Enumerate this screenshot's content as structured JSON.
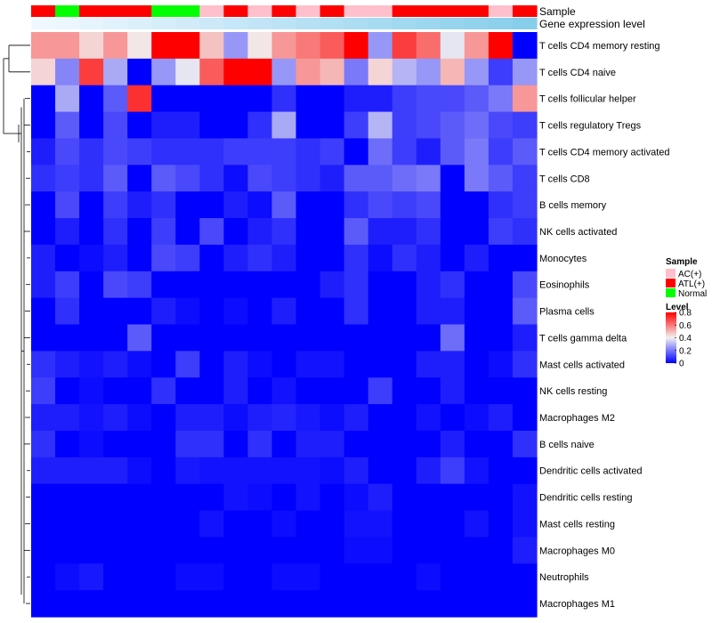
{
  "chart_data": {
    "type": "heatmap",
    "annotation_rows": [
      "Sample",
      "Gene expression level"
    ],
    "sample_groups": [
      "ATL(+)",
      "Normal",
      "ATL(+)",
      "ATL(+)",
      "ATL(+)",
      "Normal",
      "Normal",
      "AC(+)",
      "ATL(+)",
      "AC(+)",
      "ATL(+)",
      "AC(+)",
      "ATL(+)",
      "AC(+)",
      "AC(+)",
      "ATL(+)",
      "ATL(+)",
      "ATL(+)",
      "ATL(+)",
      "AC(+)",
      "ATL(+)"
    ],
    "gene_expression_level": [
      0.0,
      0.05,
      0.1,
      0.15,
      0.2,
      0.25,
      0.3,
      0.35,
      0.4,
      0.45,
      0.5,
      0.55,
      0.6,
      0.65,
      0.7,
      0.75,
      0.8,
      0.85,
      0.9,
      0.95,
      1.0
    ],
    "rows": [
      "T cells CD4 memory resting",
      "T cells CD4 naive",
      "T cells follicular helper",
      "T cells regulatory  Tregs",
      "T cells CD4 memory activated",
      "T cells CD8",
      "B cells memory",
      "NK cells activated",
      "Monocytes",
      "Eosinophils",
      "Plasma cells",
      "T cells gamma delta",
      "Mast cells activated",
      "NK cells resting",
      "Macrophages M2",
      "B cells naive",
      "Dendritic cells activated",
      "Dendritic cells resting",
      "Mast cells resting",
      "Macrophages M0",
      "Neutrophils",
      "Macrophages M1"
    ],
    "values": [
      [
        0.55,
        0.55,
        0.45,
        0.55,
        0.42,
        0.8,
        0.8,
        0.48,
        0.25,
        0.42,
        0.55,
        0.6,
        0.65,
        0.8,
        0.25,
        0.7,
        0.62,
        0.38,
        0.55,
        0.8,
        0.0
      ],
      [
        0.45,
        0.22,
        0.7,
        0.28,
        0.0,
        0.25,
        0.38,
        0.65,
        0.8,
        0.8,
        0.25,
        0.55,
        0.5,
        0.2,
        0.45,
        0.3,
        0.25,
        0.5,
        0.25,
        0.1,
        0.25
      ],
      [
        0.0,
        0.28,
        0.0,
        0.15,
        0.72,
        0.0,
        0.0,
        0.0,
        0.0,
        0.0,
        0.08,
        0.0,
        0.0,
        0.05,
        0.05,
        0.1,
        0.12,
        0.12,
        0.15,
        0.2,
        0.55
      ],
      [
        0.0,
        0.15,
        0.0,
        0.12,
        0.0,
        0.05,
        0.05,
        0.0,
        0.0,
        0.08,
        0.28,
        0.0,
        0.0,
        0.1,
        0.3,
        0.1,
        0.12,
        0.15,
        0.18,
        0.12,
        0.1
      ],
      [
        0.05,
        0.12,
        0.08,
        0.12,
        0.1,
        0.08,
        0.08,
        0.08,
        0.1,
        0.1,
        0.1,
        0.08,
        0.1,
        0.0,
        0.18,
        0.1,
        0.05,
        0.15,
        0.2,
        0.1,
        0.15
      ],
      [
        0.08,
        0.1,
        0.08,
        0.15,
        0.0,
        0.15,
        0.12,
        0.08,
        0.02,
        0.12,
        0.1,
        0.08,
        0.05,
        0.15,
        0.15,
        0.18,
        0.2,
        0.0,
        0.2,
        0.15,
        0.1
      ],
      [
        0.0,
        0.12,
        0.0,
        0.1,
        0.05,
        0.08,
        0.0,
        0.0,
        0.05,
        0.02,
        0.15,
        0.0,
        0.0,
        0.08,
        0.12,
        0.1,
        0.12,
        0.0,
        0.0,
        0.08,
        0.1
      ],
      [
        0.0,
        0.05,
        0.0,
        0.08,
        0.0,
        0.1,
        0.0,
        0.12,
        0.0,
        0.05,
        0.08,
        0.0,
        0.0,
        0.15,
        0.05,
        0.05,
        0.08,
        0.0,
        0.0,
        0.1,
        0.08
      ],
      [
        0.05,
        0.0,
        0.02,
        0.05,
        0.0,
        0.12,
        0.1,
        0.0,
        0.05,
        0.08,
        0.05,
        0.0,
        0.0,
        0.08,
        0.02,
        0.08,
        0.05,
        0.0,
        0.05,
        0.0,
        0.0
      ],
      [
        0.05,
        0.1,
        0.0,
        0.12,
        0.1,
        0.0,
        0.0,
        0.0,
        0.0,
        0.0,
        0.0,
        0.0,
        0.05,
        0.08,
        0.0,
        0.0,
        0.05,
        0.08,
        0.0,
        0.0,
        0.12
      ],
      [
        0.0,
        0.08,
        0.0,
        0.0,
        0.0,
        0.05,
        0.02,
        0.0,
        0.02,
        0.0,
        0.05,
        0.0,
        0.0,
        0.08,
        0.0,
        0.0,
        0.05,
        0.05,
        0.0,
        0.0,
        0.15
      ],
      [
        0.0,
        0.0,
        0.0,
        0.0,
        0.15,
        0.0,
        0.0,
        0.0,
        0.0,
        0.0,
        0.0,
        0.0,
        0.0,
        0.0,
        0.0,
        0.0,
        0.0,
        0.18,
        0.0,
        0.0,
        0.05
      ],
      [
        0.08,
        0.05,
        0.03,
        0.05,
        0.02,
        0.0,
        0.1,
        0.0,
        0.05,
        0.02,
        0.0,
        0.03,
        0.03,
        0.0,
        0.0,
        0.0,
        0.05,
        0.05,
        0.0,
        0.02,
        0.08
      ],
      [
        0.1,
        0.0,
        0.02,
        0.0,
        0.0,
        0.08,
        0.0,
        0.0,
        0.05,
        0.0,
        0.03,
        0.0,
        0.0,
        0.0,
        0.1,
        0.0,
        0.0,
        0.05,
        0.0,
        0.0,
        0.0
      ],
      [
        0.05,
        0.05,
        0.03,
        0.05,
        0.02,
        0.0,
        0.05,
        0.05,
        0.02,
        0.05,
        0.06,
        0.04,
        0.02,
        0.05,
        0.0,
        0.0,
        0.03,
        0.0,
        0.02,
        0.05,
        0.0
      ],
      [
        0.08,
        0.0,
        0.02,
        0.0,
        0.0,
        0.0,
        0.08,
        0.08,
        0.0,
        0.08,
        0.0,
        0.05,
        0.05,
        0.0,
        0.0,
        0.0,
        0.0,
        0.05,
        0.0,
        0.0,
        0.08
      ],
      [
        0.05,
        0.05,
        0.05,
        0.05,
        0.02,
        0.0,
        0.04,
        0.03,
        0.03,
        0.03,
        0.03,
        0.03,
        0.02,
        0.05,
        0.0,
        0.0,
        0.05,
        0.1,
        0.03,
        0.0,
        0.0
      ],
      [
        0.0,
        0.0,
        0.0,
        0.0,
        0.0,
        0.0,
        0.0,
        0.0,
        0.03,
        0.02,
        0.0,
        0.03,
        0.0,
        0.02,
        0.05,
        0.0,
        0.0,
        0.0,
        0.0,
        0.0,
        0.03
      ],
      [
        0.0,
        0.0,
        0.0,
        0.0,
        0.0,
        0.0,
        0.0,
        0.03,
        0.0,
        0.0,
        0.02,
        0.0,
        0.0,
        0.03,
        0.03,
        0.0,
        0.0,
        0.0,
        0.03,
        0.0,
        0.03
      ],
      [
        0.0,
        0.0,
        0.0,
        0.0,
        0.0,
        0.0,
        0.0,
        0.0,
        0.0,
        0.0,
        0.0,
        0.0,
        0.0,
        0.02,
        0.02,
        0.0,
        0.0,
        0.0,
        0.0,
        0.0,
        0.05
      ],
      [
        0.0,
        0.02,
        0.04,
        0.0,
        0.0,
        0.0,
        0.02,
        0.02,
        0.0,
        0.0,
        0.02,
        0.02,
        0.0,
        0.0,
        0.0,
        0.0,
        0.02,
        0.0,
        0.0,
        0.0,
        0.0
      ],
      [
        0.0,
        0.0,
        0.0,
        0.0,
        0.0,
        0.0,
        0.0,
        0.0,
        0.0,
        0.0,
        0.0,
        0.0,
        0.0,
        0.0,
        0.0,
        0.0,
        0.0,
        0.0,
        0.0,
        0.0,
        0.0
      ]
    ],
    "legend_sample": {
      "title": "Sample",
      "entries": [
        {
          "label": "AC(+)",
          "color": "#ffc0cb"
        },
        {
          "label": "ATL(+)",
          "color": "#ff0000"
        },
        {
          "label": "Normal",
          "color": "#00ff00"
        }
      ]
    },
    "legend_level": {
      "title": "Level",
      "ticks": [
        "0.8",
        "0.6",
        "0.4",
        "0.2",
        "0"
      ],
      "range": [
        0,
        0.8
      ]
    },
    "colors": {
      "low": "#0000ff",
      "mid": "#f2f2f2",
      "high": "#ff0000",
      "expr_low": "#f0f8ff",
      "expr_high": "#87ceeb"
    },
    "color_range": [
      0,
      0.8
    ]
  }
}
